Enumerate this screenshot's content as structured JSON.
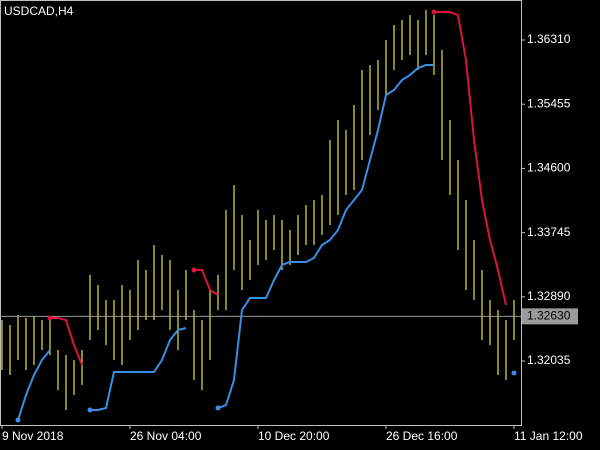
{
  "chart_data": {
    "type": "ohlc",
    "title": "USDCAD,H4",
    "bar_color": "#e6df4c",
    "categories": [
      "9 Nov 2018",
      null,
      null,
      null,
      null,
      null,
      null,
      null,
      null,
      null,
      null,
      null,
      null,
      null,
      null,
      null,
      "26 Nov 04:00",
      null,
      null,
      null,
      null,
      null,
      null,
      null,
      null,
      null,
      null,
      null,
      null,
      null,
      null,
      null,
      "10 Dec 20:00",
      null,
      null,
      null,
      null,
      null,
      null,
      null,
      null,
      null,
      null,
      null,
      null,
      null,
      null,
      null,
      "26 Dec 16:00",
      null,
      null,
      null,
      null,
      null,
      null,
      null,
      null,
      null,
      null,
      null,
      null,
      null,
      null,
      null,
      "11 Jan 12:00"
    ],
    "high": [
      1.32581,
      1.32515,
      1.32648,
      1.32608,
      1.32635,
      1.32581,
      1.32608,
      1.32182,
      1.32115,
      1.32048,
      1.32182,
      1.33181,
      1.33048,
      1.32848,
      1.32848,
      1.33048,
      1.32981,
      1.3338,
      1.33247,
      1.3358,
      1.33447,
      1.3338,
      1.32981,
      1.33247,
      1.32714,
      1.32581,
      1.32981,
      1.33181,
      1.34046,
      1.34379,
      1.3398,
      1.33647,
      1.34046,
      1.33913,
      1.3398,
      1.33913,
      1.3378,
      1.3398,
      1.34113,
      1.34179,
      1.34246,
      1.34979,
      1.35245,
      1.35112,
      1.35445,
      1.35911,
      1.35977,
      1.36044,
      1.3631,
      1.3651,
      1.36577,
      1.36643,
      1.36577,
      1.3671,
      1.36643,
      1.36177,
      1.35245,
      1.34712,
      1.34179,
      1.33647,
      1.33247,
      1.32848,
      1.32714,
      1.32581,
      1.32848
    ],
    "low": [
      1.31915,
      1.31849,
      1.32048,
      1.31915,
      1.31982,
      1.32182,
      1.32115,
      1.31649,
      1.31383,
      1.31582,
      1.31716,
      1.32315,
      1.32448,
      1.32248,
      1.32048,
      1.31982,
      1.32315,
      1.32448,
      1.32581,
      1.32581,
      1.32714,
      1.32448,
      1.32182,
      1.32581,
      1.31782,
      1.31649,
      1.32048,
      1.32714,
      1.32714,
      1.33247,
      1.32981,
      1.33114,
      1.33314,
      1.3338,
      1.33514,
      1.33247,
      1.33314,
      1.33447,
      1.3358,
      1.3358,
      1.33713,
      1.33846,
      1.3398,
      1.34246,
      1.34313,
      1.34712,
      1.35045,
      1.35378,
      1.35578,
      1.35911,
      1.36044,
      1.3611,
      1.35911,
      1.3611,
      1.35844,
      1.34712,
      1.34246,
      1.33514,
      1.32981,
      1.32848,
      1.32315,
      1.32248,
      1.31849,
      1.31782,
      1.32315
    ],
    "series": [
      {
        "color": "#3a8ee6",
        "values": [
          null,
          null,
          1.31249,
          1.31582,
          1.31849,
          1.32048,
          1.32182,
          null,
          null,
          null,
          null,
          1.31383,
          1.31383,
          1.31409,
          1.31889,
          1.31889,
          1.31889,
          1.31889,
          1.31889,
          1.31889,
          1.32048,
          1.32315,
          1.32448,
          1.32475,
          null,
          null,
          null,
          1.31409,
          1.31449,
          1.31782,
          1.32714,
          1.32874,
          1.32874,
          1.32874,
          1.33114,
          1.33314,
          1.33354,
          1.33354,
          1.33354,
          1.33407,
          1.3358,
          1.33647,
          1.3378,
          1.34046,
          1.34179,
          1.34313,
          1.34712,
          1.35112,
          1.35578,
          1.35644,
          1.35778,
          1.35844,
          1.35937,
          1.35977,
          1.35977,
          null,
          null,
          null,
          null,
          null,
          null,
          null,
          null,
          null,
          1.31876
        ]
      },
      {
        "color": "#dc143c",
        "values": [
          null,
          null,
          null,
          null,
          null,
          null,
          1.32608,
          1.32608,
          1.32581,
          1.32248,
          1.31982,
          null,
          null,
          null,
          null,
          null,
          null,
          null,
          null,
          null,
          null,
          null,
          null,
          null,
          1.33247,
          1.33247,
          1.32981,
          1.32914,
          null,
          null,
          null,
          null,
          null,
          null,
          null,
          null,
          null,
          null,
          null,
          null,
          null,
          null,
          null,
          null,
          null,
          null,
          null,
          null,
          null,
          null,
          null,
          null,
          null,
          null,
          1.36683,
          1.36683,
          1.36683,
          1.36643,
          1.36044,
          1.34979,
          1.34179,
          1.33647,
          1.33247,
          1.32781,
          null
        ]
      }
    ],
    "ylim": [
      1.31183,
      1.36843
    ],
    "yticks": [
      {
        "value": 1.3631,
        "label": "1.36310"
      },
      {
        "value": 1.35455,
        "label": "1.35455"
      },
      {
        "value": 1.346,
        "label": "1.34600"
      },
      {
        "value": 1.33745,
        "label": "1.33745"
      },
      {
        "value": 1.3289,
        "label": "1.32890"
      },
      {
        "value": 1.32035,
        "label": "1.32035"
      }
    ],
    "current_price": {
      "value": 1.3263,
      "label": "1.32630"
    }
  }
}
